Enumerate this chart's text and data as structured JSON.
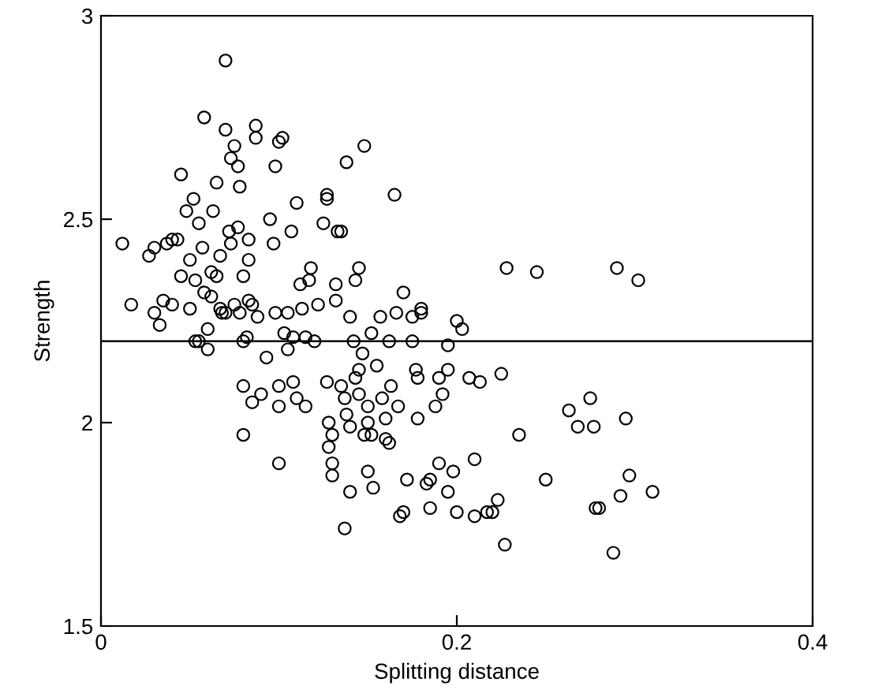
{
  "chart_data": {
    "type": "scatter",
    "xlabel": "Splitting distance",
    "ylabel": "Strength",
    "xlim": [
      0,
      0.4
    ],
    "ylim": [
      1.5,
      3
    ],
    "xticks": [
      0,
      0.2,
      0.4
    ],
    "yticks": [
      1.5,
      2,
      2.5,
      3
    ],
    "grid": false,
    "marker": "circle",
    "ref_lines": [
      {
        "axis": "y",
        "value": 2.2,
        "color": "#000000"
      }
    ],
    "series": [
      {
        "color": "#000000",
        "x": [
          0.012,
          0.017,
          0.027,
          0.03,
          0.03,
          0.033,
          0.035,
          0.037,
          0.04,
          0.04,
          0.043,
          0.045,
          0.045,
          0.048,
          0.05,
          0.05,
          0.052,
          0.053,
          0.053,
          0.055,
          0.055,
          0.057,
          0.058,
          0.058,
          0.06,
          0.06,
          0.062,
          0.062,
          0.063,
          0.065,
          0.065,
          0.067,
          0.067,
          0.068,
          0.07,
          0.07,
          0.07,
          0.072,
          0.073,
          0.073,
          0.075,
          0.075,
          0.077,
          0.077,
          0.078,
          0.078,
          0.08,
          0.08,
          0.08,
          0.08,
          0.082,
          0.083,
          0.083,
          0.083,
          0.085,
          0.085,
          0.087,
          0.087,
          0.088,
          0.09,
          0.093,
          0.095,
          0.097,
          0.098,
          0.098,
          0.1,
          0.1,
          0.1,
          0.1,
          0.102,
          0.103,
          0.105,
          0.105,
          0.107,
          0.108,
          0.108,
          0.11,
          0.11,
          0.112,
          0.113,
          0.115,
          0.115,
          0.117,
          0.118,
          0.12,
          0.122,
          0.125,
          0.127,
          0.127,
          0.127,
          0.128,
          0.128,
          0.13,
          0.13,
          0.13,
          0.132,
          0.132,
          0.133,
          0.135,
          0.135,
          0.137,
          0.137,
          0.138,
          0.138,
          0.14,
          0.14,
          0.14,
          0.142,
          0.143,
          0.143,
          0.145,
          0.145,
          0.145,
          0.147,
          0.148,
          0.148,
          0.15,
          0.15,
          0.15,
          0.152,
          0.152,
          0.153,
          0.155,
          0.157,
          0.158,
          0.16,
          0.16,
          0.162,
          0.162,
          0.163,
          0.165,
          0.166,
          0.167,
          0.168,
          0.17,
          0.17,
          0.172,
          0.175,
          0.175,
          0.177,
          0.178,
          0.178,
          0.18,
          0.18,
          0.183,
          0.185,
          0.185,
          0.188,
          0.19,
          0.19,
          0.192,
          0.195,
          0.195,
          0.195,
          0.198,
          0.2,
          0.2,
          0.203,
          0.207,
          0.21,
          0.21,
          0.213,
          0.217,
          0.22,
          0.223,
          0.225,
          0.227,
          0.228,
          0.235,
          0.245,
          0.25,
          0.263,
          0.268,
          0.275,
          0.277,
          0.278,
          0.28,
          0.288,
          0.29,
          0.292,
          0.295,
          0.297,
          0.302,
          0.31
        ],
        "values": [
          2.44,
          2.29,
          2.41,
          2.43,
          2.27,
          2.24,
          2.3,
          2.44,
          2.29,
          2.45,
          2.45,
          2.61,
          2.36,
          2.52,
          2.4,
          2.28,
          2.55,
          2.35,
          2.2,
          2.49,
          2.2,
          2.43,
          2.32,
          2.75,
          2.23,
          2.18,
          2.37,
          2.31,
          2.52,
          2.36,
          2.59,
          2.28,
          2.41,
          2.27,
          2.27,
          2.89,
          2.72,
          2.47,
          2.44,
          2.65,
          2.68,
          2.29,
          2.48,
          2.63,
          2.27,
          2.58,
          2.36,
          2.2,
          2.09,
          1.97,
          2.21,
          2.3,
          2.4,
          2.45,
          2.29,
          2.05,
          2.7,
          2.73,
          2.26,
          2.07,
          2.16,
          2.5,
          2.44,
          2.63,
          2.27,
          2.09,
          2.04,
          1.9,
          2.69,
          2.7,
          2.22,
          2.18,
          2.27,
          2.47,
          2.1,
          2.21,
          2.54,
          2.06,
          2.34,
          2.28,
          2.21,
          2.04,
          2.35,
          2.38,
          2.2,
          2.29,
          2.49,
          2.56,
          2.55,
          2.1,
          2.0,
          1.94,
          1.97,
          1.9,
          1.87,
          2.34,
          2.3,
          2.47,
          2.47,
          2.09,
          2.06,
          1.74,
          2.64,
          2.02,
          1.99,
          2.26,
          1.83,
          2.2,
          2.35,
          2.11,
          2.38,
          2.13,
          2.07,
          2.17,
          2.68,
          1.97,
          2.04,
          2.0,
          1.88,
          2.22,
          1.97,
          1.84,
          2.14,
          2.26,
          2.06,
          1.96,
          2.01,
          1.95,
          2.2,
          2.09,
          2.56,
          2.27,
          2.04,
          1.77,
          1.78,
          2.32,
          1.86,
          2.26,
          2.2,
          2.13,
          2.01,
          2.11,
          2.27,
          2.28,
          1.85,
          1.86,
          1.79,
          2.04,
          2.11,
          1.9,
          2.07,
          2.19,
          2.13,
          1.83,
          1.88,
          1.78,
          2.25,
          2.23,
          2.11,
          1.91,
          1.77,
          2.1,
          1.78,
          1.78,
          1.81,
          2.12,
          1.7,
          2.38,
          1.97,
          2.37,
          1.86,
          2.03,
          1.99,
          2.06,
          1.99,
          1.79,
          1.79,
          1.68,
          2.38,
          1.82,
          2.01,
          1.87,
          2.35,
          1.83
        ]
      }
    ]
  }
}
